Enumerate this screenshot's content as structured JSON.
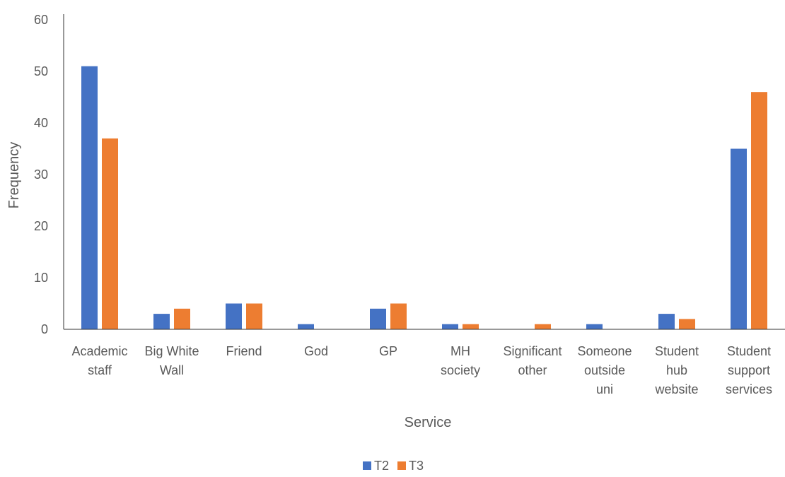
{
  "chart_data": {
    "type": "bar",
    "title": "",
    "xlabel": "Service",
    "ylabel": "Frequency",
    "ylim": [
      0,
      60
    ],
    "yticks": [
      0,
      10,
      20,
      30,
      40,
      50,
      60
    ],
    "grid": false,
    "legend_position": "bottom-center",
    "categories": [
      [
        "Academic",
        "staff"
      ],
      [
        "Big White",
        "Wall"
      ],
      [
        "Friend"
      ],
      [
        "God"
      ],
      [
        "GP"
      ],
      [
        "MH",
        "society"
      ],
      [
        "Significant",
        "other"
      ],
      [
        "Someone",
        "outside",
        "uni"
      ],
      [
        "Student",
        "hub",
        "website"
      ],
      [
        "Student",
        "support",
        "services"
      ]
    ],
    "series": [
      {
        "name": "T2",
        "color": "#4472C4",
        "values": [
          51,
          3,
          5,
          1,
          4,
          1,
          0,
          1,
          3,
          35
        ]
      },
      {
        "name": "T3",
        "color": "#ED7D31",
        "values": [
          37,
          4,
          5,
          0,
          5,
          1,
          1,
          0,
          2,
          46
        ]
      }
    ]
  }
}
